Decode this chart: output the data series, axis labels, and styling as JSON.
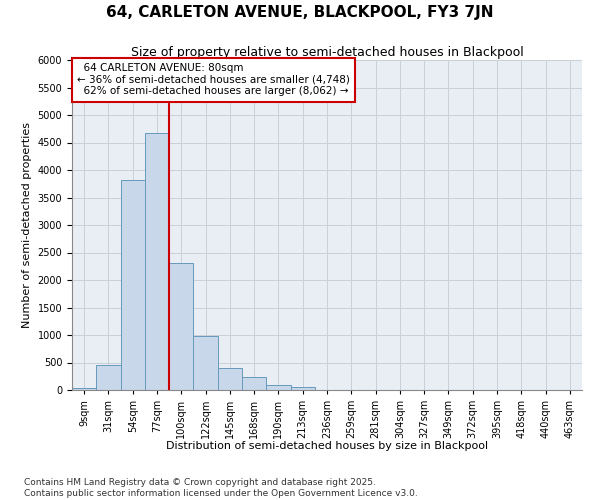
{
  "title": "64, CARLETON AVENUE, BLACKPOOL, FY3 7JN",
  "subtitle": "Size of property relative to semi-detached houses in Blackpool",
  "xlabel": "Distribution of semi-detached houses by size in Blackpool",
  "ylabel": "Number of semi-detached properties",
  "footnote": "Contains HM Land Registry data © Crown copyright and database right 2025.\nContains public sector information licensed under the Open Government Licence v3.0.",
  "property_label": "64 CARLETON AVENUE: 80sqm",
  "smaller_pct": 36,
  "smaller_count": 4748,
  "larger_pct": 62,
  "larger_count": 8062,
  "bin_labels": [
    "9sqm",
    "31sqm",
    "54sqm",
    "77sqm",
    "100sqm",
    "122sqm",
    "145sqm",
    "168sqm",
    "190sqm",
    "213sqm",
    "236sqm",
    "259sqm",
    "281sqm",
    "304sqm",
    "327sqm",
    "349sqm",
    "372sqm",
    "395sqm",
    "418sqm",
    "440sqm",
    "463sqm"
  ],
  "bar_values": [
    30,
    450,
    3820,
    4680,
    2310,
    990,
    400,
    240,
    100,
    50,
    0,
    0,
    0,
    0,
    0,
    0,
    0,
    0,
    0,
    0,
    0
  ],
  "bar_color": "#c8d8ea",
  "bar_edge_color": "#6699bb",
  "vline_color": "#cc0000",
  "vline_x_index": 3,
  "annotation_box_color": "#cc0000",
  "ylim_max": 6000,
  "ytick_step": 500,
  "grid_color": "#c8d0d8",
  "bg_color": "#e8eef4",
  "title_fontsize": 11,
  "subtitle_fontsize": 9,
  "axis_label_fontsize": 8,
  "tick_fontsize": 7,
  "annotation_fontsize": 7.5,
  "footnote_fontsize": 6.5
}
